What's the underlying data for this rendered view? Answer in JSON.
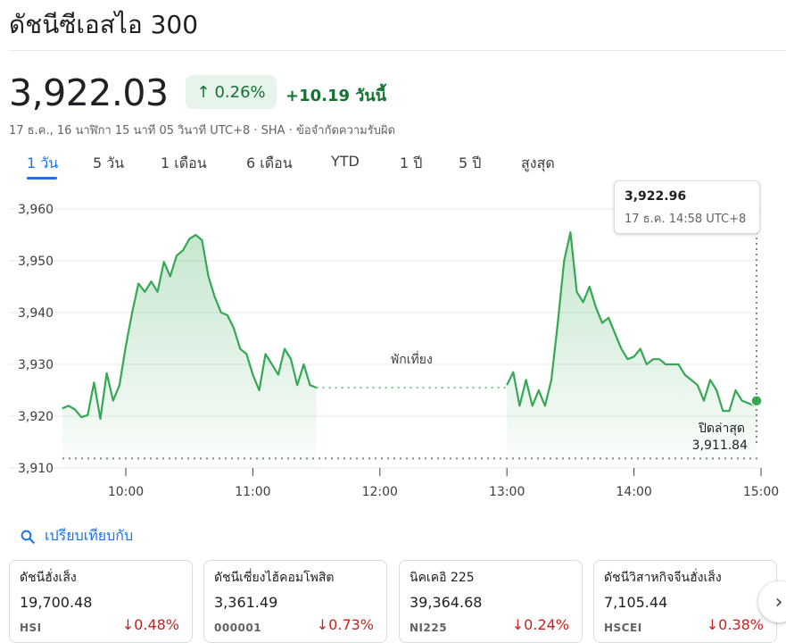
{
  "title": "ดัชนีซีเอสไอ 300",
  "price": "3,922.03",
  "change_pct": "0.26%",
  "change_abs": "+10.19 วันนี้",
  "meta": "17 ธ.ค., 16 นาฬิกา 15 นาที 05 วินาที UTC+8 · SHA · ข้อจำกัดความรับผิด",
  "tabs": [
    "1 วัน",
    "5 วัน",
    "1 เดือน",
    "6 เดือน",
    "YTD",
    "1 ปี",
    "5 ปี",
    "สูงสุด"
  ],
  "tooltip": {
    "value": "3,922.96",
    "time": "17 ธ.ค. 14:58 UTC+8"
  },
  "chart_data": {
    "type": "line",
    "ylim": [
      3910,
      3960
    ],
    "yticks": [
      "3,960",
      "3,950",
      "3,940",
      "3,930",
      "3,920",
      "3,910"
    ],
    "xticks": [
      "10:00",
      "11:00",
      "12:00",
      "13:00",
      "14:00",
      "15:00"
    ],
    "break_label": "พักเที่ยง",
    "prev_close_label": "ปิดล่าสุด",
    "prev_close_value": "3,911.84",
    "prev_close": 3911.84,
    "morning": [
      [
        "9:30",
        3921.5
      ],
      [
        "9:33",
        3922
      ],
      [
        "9:36",
        3921.3
      ],
      [
        "9:39",
        3919.8
      ],
      [
        "9:42",
        3920.2
      ],
      [
        "9:45",
        3926.5
      ],
      [
        "9:48",
        3919.5
      ],
      [
        "9:51",
        3928.3
      ],
      [
        "9:54",
        3923
      ],
      [
        "9:57",
        3926
      ],
      [
        "10:00",
        3933.5
      ],
      [
        "10:03",
        3940
      ],
      [
        "10:06",
        3945.6
      ],
      [
        "10:09",
        3944
      ],
      [
        "10:12",
        3946
      ],
      [
        "10:15",
        3944
      ],
      [
        "10:18",
        3949.8
      ],
      [
        "10:21",
        3947
      ],
      [
        "10:24",
        3951
      ],
      [
        "10:27",
        3952
      ],
      [
        "10:30",
        3954.2
      ],
      [
        "10:33",
        3955
      ],
      [
        "10:36",
        3954
      ],
      [
        "10:39",
        3947
      ],
      [
        "10:42",
        3943
      ],
      [
        "10:45",
        3940
      ],
      [
        "10:48",
        3939.5
      ],
      [
        "10:51",
        3937
      ],
      [
        "10:54",
        3933
      ],
      [
        "10:57",
        3932
      ],
      [
        "11:00",
        3928
      ],
      [
        "11:03",
        3925
      ],
      [
        "11:06",
        3932
      ],
      [
        "11:09",
        3930
      ],
      [
        "11:12",
        3928
      ],
      [
        "11:15",
        3933
      ],
      [
        "11:18",
        3931
      ],
      [
        "11:21",
        3926
      ],
      [
        "11:24",
        3930
      ],
      [
        "11:27",
        3926
      ],
      [
        "11:30",
        3925.5
      ]
    ],
    "afternoon": [
      [
        "13:00",
        3926
      ],
      [
        "13:03",
        3928.5
      ],
      [
        "13:06",
        3922
      ],
      [
        "13:09",
        3927
      ],
      [
        "13:12",
        3922
      ],
      [
        "13:15",
        3925
      ],
      [
        "13:18",
        3922
      ],
      [
        "13:21",
        3927
      ],
      [
        "13:24",
        3938
      ],
      [
        "13:27",
        3950
      ],
      [
        "13:30",
        3955.5
      ],
      [
        "13:33",
        3944
      ],
      [
        "13:36",
        3942
      ],
      [
        "13:39",
        3945
      ],
      [
        "13:42",
        3941
      ],
      [
        "13:45",
        3938
      ],
      [
        "13:48",
        3939
      ],
      [
        "13:51",
        3936
      ],
      [
        "13:54",
        3933
      ],
      [
        "13:57",
        3931
      ],
      [
        "14:00",
        3931.5
      ],
      [
        "14:03",
        3933
      ],
      [
        "14:06",
        3930
      ],
      [
        "14:09",
        3931
      ],
      [
        "14:12",
        3931
      ],
      [
        "14:15",
        3930
      ],
      [
        "14:18",
        3930
      ],
      [
        "14:21",
        3930
      ],
      [
        "14:24",
        3928
      ],
      [
        "14:27",
        3927
      ],
      [
        "14:30",
        3926
      ],
      [
        "14:33",
        3923
      ],
      [
        "14:36",
        3927
      ],
      [
        "14:39",
        3925
      ],
      [
        "14:42",
        3921
      ],
      [
        "14:45",
        3921
      ],
      [
        "14:48",
        3925
      ],
      [
        "14:51",
        3923
      ],
      [
        "14:54",
        3922.5
      ],
      [
        "14:57",
        3922
      ],
      [
        "14:58",
        3922.96
      ]
    ]
  },
  "compare_label": "เปรียบเทียบกับ",
  "cards": [
    {
      "name": "ดัชนีฮั่งเส็ง",
      "price": "19,700.48",
      "ticker": "HSI",
      "change": "0.48%"
    },
    {
      "name": "ดัชนีเซี่ยงไฮ้คอมโพสิต",
      "price": "3,361.49",
      "ticker": "000001",
      "change": "0.73%"
    },
    {
      "name": "นิคเคอิ 225",
      "price": "39,364.68",
      "ticker": "NI225",
      "change": "0.24%"
    },
    {
      "name": "ดัชนีวิสาหกิจจีนฮั่งเส็ง",
      "price": "7,105.44",
      "ticker": "HSCEI",
      "change": "0.38%"
    }
  ],
  "colors": {
    "up": "#137333",
    "down": "#c5221f",
    "accent": "#1a73e8",
    "line": "#34a853"
  }
}
